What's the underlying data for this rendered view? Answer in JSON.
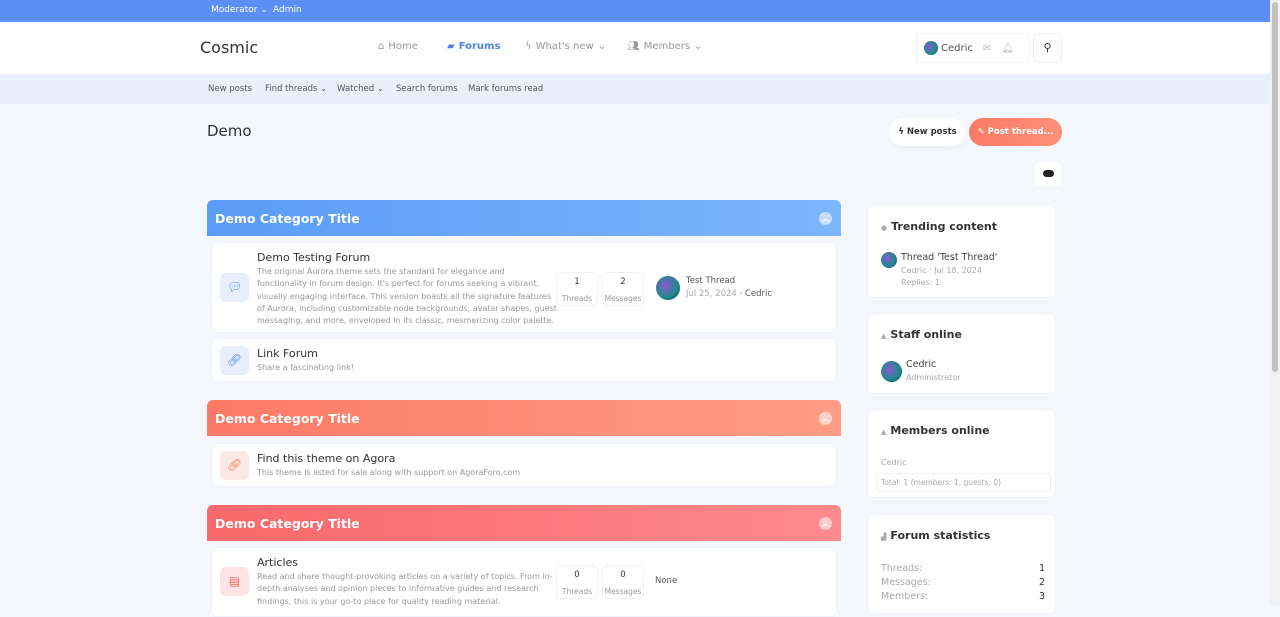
{
  "topbar": {
    "moderator": "Moderator",
    "admin": "Admin"
  },
  "header": {
    "logo": "Cosmic",
    "nav": [
      {
        "label": "Home",
        "icon": "home-icon"
      },
      {
        "label": "Forums",
        "icon": "forums-icon"
      },
      {
        "label": "What's new",
        "icon": "bolt-icon"
      },
      {
        "label": "Members",
        "icon": "members-icon"
      }
    ],
    "user": "Cedric"
  },
  "subnav": [
    "New posts",
    "Find threads",
    "Watched",
    "Search forums",
    "Mark forums read"
  ],
  "page": {
    "title": "Demo",
    "new_posts": "New posts",
    "post_thread": "Post thread..."
  },
  "categories": [
    {
      "title": "Demo Category Title",
      "color": "#5a9cf8",
      "nodes": [
        {
          "title": "Demo Testing Forum",
          "desc": "The original Aurora theme sets the standard for elegance and functionality in forum design. It's perfect for forums seeking a vibrant, visually engaging interface. This version boasts all the signature features of Aurora, including customizable node backgrounds, avatar shapes, guest messaging, and more, enveloped in its classic, mesmerizing color palette.",
          "threads": "1",
          "messages": "2",
          "threads_label": "Threads",
          "messages_label": "Messages",
          "last_title": "Test Thread",
          "last_date": "Jul 25, 2024",
          "last_user": "Cedric"
        },
        {
          "title": "Link Forum",
          "desc": "Share a fascinating link!"
        }
      ]
    },
    {
      "title": "Demo Category Title",
      "color": "#fb7d68",
      "nodes": [
        {
          "title": "Find this theme on Agora",
          "desc": "This theme is listed for sale along with support on AgoraForo.com"
        }
      ]
    },
    {
      "title": "Demo Category Title",
      "color": "#f96c70",
      "nodes": [
        {
          "title": "Articles",
          "desc": "Read and share thought-provoking articles on a variety of topics. From in-depth analyses and opinion pieces to informative guides and research findings, this is your go-to place for quality reading material.",
          "threads": "0",
          "messages": "0",
          "threads_label": "Threads",
          "messages_label": "Messages",
          "last": "None"
        }
      ]
    }
  ],
  "sidebar": {
    "trending": {
      "title": "Trending content",
      "item": "Thread 'Test Thread'",
      "meta": "Cedric · Jul 18, 2024",
      "replies": "Replies: 1"
    },
    "staff": {
      "title": "Staff online",
      "name": "Cedric",
      "role": "Administrator"
    },
    "members": {
      "title": "Members online",
      "list": "Cedric",
      "total": "Total: 1 (members: 1, guests: 0)"
    },
    "stats": {
      "title": "Forum statistics",
      "rows": [
        {
          "label": "Threads:",
          "value": "1"
        },
        {
          "label": "Messages:",
          "value": "2"
        },
        {
          "label": "Members:",
          "value": "3"
        }
      ]
    }
  }
}
